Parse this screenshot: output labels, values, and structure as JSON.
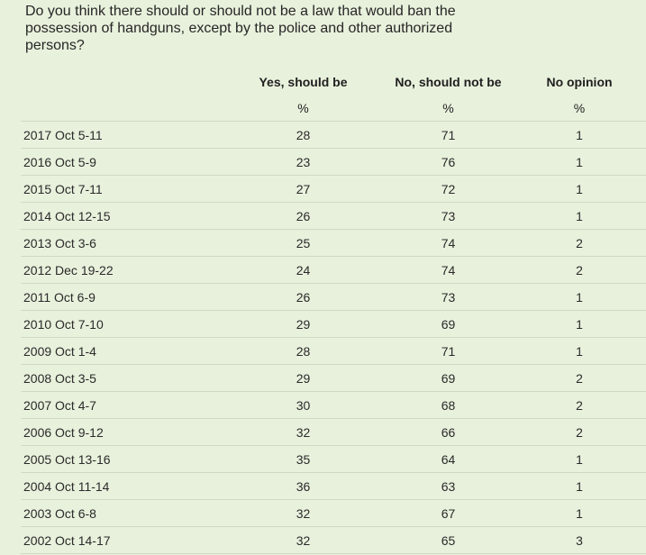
{
  "question": "Do you think there should or should not be a law that would ban the possession of handguns, except by the police and other authorized persons?",
  "chart_data": {
    "type": "table",
    "columns": [
      "",
      "Yes, should be",
      "No, should not be",
      "No opinion"
    ],
    "units": [
      "",
      "%",
      "%",
      "%"
    ],
    "rows": [
      {
        "date": "2017 Oct 5-11",
        "yes": "28",
        "no": "71",
        "no_opinion": "1"
      },
      {
        "date": "2016 Oct 5-9",
        "yes": "23",
        "no": "76",
        "no_opinion": "1"
      },
      {
        "date": "2015 Oct 7-11",
        "yes": "27",
        "no": "72",
        "no_opinion": "1"
      },
      {
        "date": "2014 Oct 12-15",
        "yes": "26",
        "no": "73",
        "no_opinion": "1"
      },
      {
        "date": "2013 Oct 3-6",
        "yes": "25",
        "no": "74",
        "no_opinion": "2"
      },
      {
        "date": "2012 Dec 19-22",
        "yes": "24",
        "no": "74",
        "no_opinion": "2"
      },
      {
        "date": "2011 Oct 6-9",
        "yes": "26",
        "no": "73",
        "no_opinion": "1"
      },
      {
        "date": "2010 Oct 7-10",
        "yes": "29",
        "no": "69",
        "no_opinion": "1"
      },
      {
        "date": "2009 Oct 1-4",
        "yes": "28",
        "no": "71",
        "no_opinion": "1"
      },
      {
        "date": "2008 Oct 3-5",
        "yes": "29",
        "no": "69",
        "no_opinion": "2"
      },
      {
        "date": "2007 Oct 4-7",
        "yes": "30",
        "no": "68",
        "no_opinion": "2"
      },
      {
        "date": "2006 Oct 9-12",
        "yes": "32",
        "no": "66",
        "no_opinion": "2"
      },
      {
        "date": "2005 Oct 13-16",
        "yes": "35",
        "no": "64",
        "no_opinion": "1"
      },
      {
        "date": "2004 Oct 11-14",
        "yes": "36",
        "no": "63",
        "no_opinion": "1"
      },
      {
        "date": "2003 Oct 6-8",
        "yes": "32",
        "no": "67",
        "no_opinion": "1"
      },
      {
        "date": "2002 Oct 14-17",
        "yes": "32",
        "no": "65",
        "no_opinion": "3"
      }
    ]
  },
  "colors": {
    "background": "#e8f1dc",
    "divider": "#cfd9c3",
    "text": "#1f1f1f"
  }
}
